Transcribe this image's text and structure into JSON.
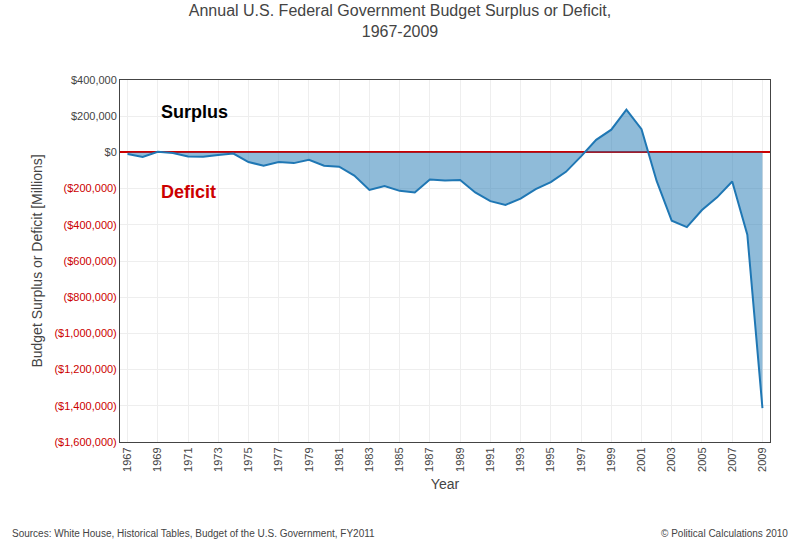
{
  "chart_data": {
    "type": "area",
    "title": "Annual U.S. Federal Government Budget Surplus or Deficit,\n1967-2009",
    "xlabel": "Year",
    "ylabel": "Budget Surplus or Deficit [Millions]",
    "x": [
      1967,
      1968,
      1969,
      1970,
      1971,
      1972,
      1973,
      1974,
      1975,
      1976,
      1977,
      1978,
      1979,
      1980,
      1981,
      1982,
      1983,
      1984,
      1985,
      1986,
      1987,
      1988,
      1989,
      1990,
      1991,
      1992,
      1993,
      1994,
      1995,
      1996,
      1997,
      1998,
      1999,
      2000,
      2001,
      2002,
      2003,
      2004,
      2005,
      2006,
      2007,
      2008,
      2009
    ],
    "values": [
      -8643,
      -25161,
      3242,
      -2842,
      -23033,
      -23373,
      -14908,
      -6135,
      -53242,
      -73732,
      -53659,
      -59185,
      -40725,
      -73830,
      -78968,
      -127977,
      -207802,
      -185367,
      -212308,
      -221227,
      -149730,
      -155178,
      -152639,
      -221036,
      -269521,
      -290321,
      -255087,
      -203186,
      -163952,
      -107431,
      -21884,
      69270,
      125610,
      236241,
      128236,
      -157758,
      -377585,
      -412727,
      -318346,
      -248181,
      -160701,
      -454798,
      -1412688
    ],
    "xlim": [
      1966.5,
      2009.5
    ],
    "xticks": [
      1967,
      1969,
      1971,
      1973,
      1975,
      1977,
      1979,
      1981,
      1983,
      1985,
      1987,
      1989,
      1991,
      1993,
      1995,
      1997,
      1999,
      2001,
      2003,
      2005,
      2007,
      2009
    ],
    "ylim": [
      -1600000,
      400000
    ],
    "yticks": [
      {
        "value": 400000,
        "label": "$400,000"
      },
      {
        "value": 200000,
        "label": "$200,000"
      },
      {
        "value": 0,
        "label": "$0"
      },
      {
        "value": -200000,
        "label": "($200,000)"
      },
      {
        "value": -400000,
        "label": "($400,000)"
      },
      {
        "value": -600000,
        "label": "($600,000)"
      },
      {
        "value": -800000,
        "label": "($800,000)"
      },
      {
        "value": -1000000,
        "label": "($1,000,000)"
      },
      {
        "value": -1200000,
        "label": "($1,200,000)"
      },
      {
        "value": -1400000,
        "label": "($1,400,000)"
      },
      {
        "value": -1600000,
        "label": "($1,600,000)"
      }
    ],
    "grid": true,
    "annotations": [
      {
        "text": "Surplus",
        "color": "#000000"
      },
      {
        "text": "Deficit",
        "color": "#cc0000"
      },
      {
        "text": "Sources: White House, Historical Tables, Budget of the U.S. Government, FY2011"
      },
      {
        "text": "© Political Calculations 2010"
      }
    ]
  }
}
